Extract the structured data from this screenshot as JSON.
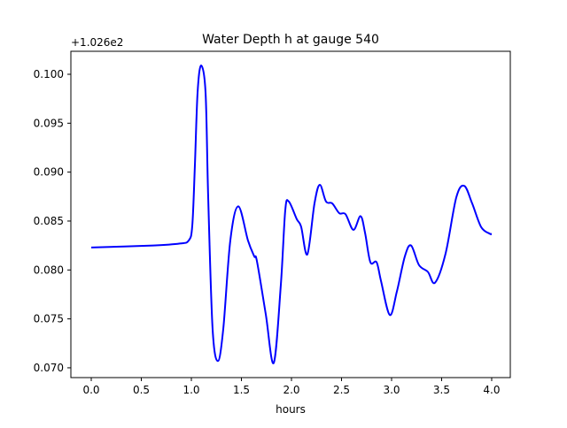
{
  "chart_data": {
    "type": "line",
    "title": "Water Depth h at gauge 540",
    "xlabel": "hours",
    "ylabel": "",
    "y_offset_label": "+1.026e2",
    "xlim": [
      -0.2035,
      4.186
    ],
    "ylim": [
      0.069,
      0.10235
    ],
    "xticks": [
      0.0,
      0.5,
      1.0,
      1.5,
      2.0,
      2.5,
      3.0,
      3.5,
      4.0
    ],
    "xtick_labels": [
      "0.0",
      "0.5",
      "1.0",
      "1.5",
      "2.0",
      "2.5",
      "3.0",
      "3.5",
      "4.0"
    ],
    "yticks": [
      0.07,
      0.075,
      0.08,
      0.085,
      0.09,
      0.095,
      0.1
    ],
    "ytick_labels": [
      "0.070",
      "0.075",
      "0.080",
      "0.085",
      "0.090",
      "0.095",
      "0.100"
    ],
    "grid": false,
    "series": [
      {
        "name": "h",
        "color": "#0000ff",
        "x": [
          0.0,
          0.62,
          0.885,
          0.973,
          1.009,
          1.035,
          1.062,
          1.097,
          1.142,
          1.168,
          1.212,
          1.265,
          1.319,
          1.389,
          1.469,
          1.566,
          1.628,
          1.655,
          1.743,
          1.823,
          1.894,
          1.938,
          1.973,
          2.053,
          2.097,
          2.159,
          2.23,
          2.283,
          2.345,
          2.407,
          2.478,
          2.54,
          2.619,
          2.69,
          2.735,
          2.788,
          2.85,
          2.894,
          2.982,
          3.053,
          3.133,
          3.195,
          3.274,
          3.363,
          3.434,
          3.54,
          3.646,
          3.726,
          3.805,
          3.894,
          3.982,
          4.0
        ],
        "y": [
          0.0823,
          0.0825,
          0.0827,
          0.083,
          0.0845,
          0.0906,
          0.0981,
          0.1009,
          0.0981,
          0.0875,
          0.074,
          0.0707,
          0.074,
          0.083,
          0.0865,
          0.083,
          0.0814,
          0.0809,
          0.0755,
          0.0705,
          0.0785,
          0.0861,
          0.087,
          0.0852,
          0.0844,
          0.0816,
          0.0868,
          0.0887,
          0.087,
          0.0868,
          0.0858,
          0.0857,
          0.0841,
          0.0855,
          0.0838,
          0.0808,
          0.0808,
          0.0789,
          0.0754,
          0.0778,
          0.0814,
          0.0825,
          0.0805,
          0.0798,
          0.0787,
          0.0817,
          0.0874,
          0.0886,
          0.0868,
          0.0844,
          0.0837,
          0.0837
        ]
      }
    ]
  }
}
